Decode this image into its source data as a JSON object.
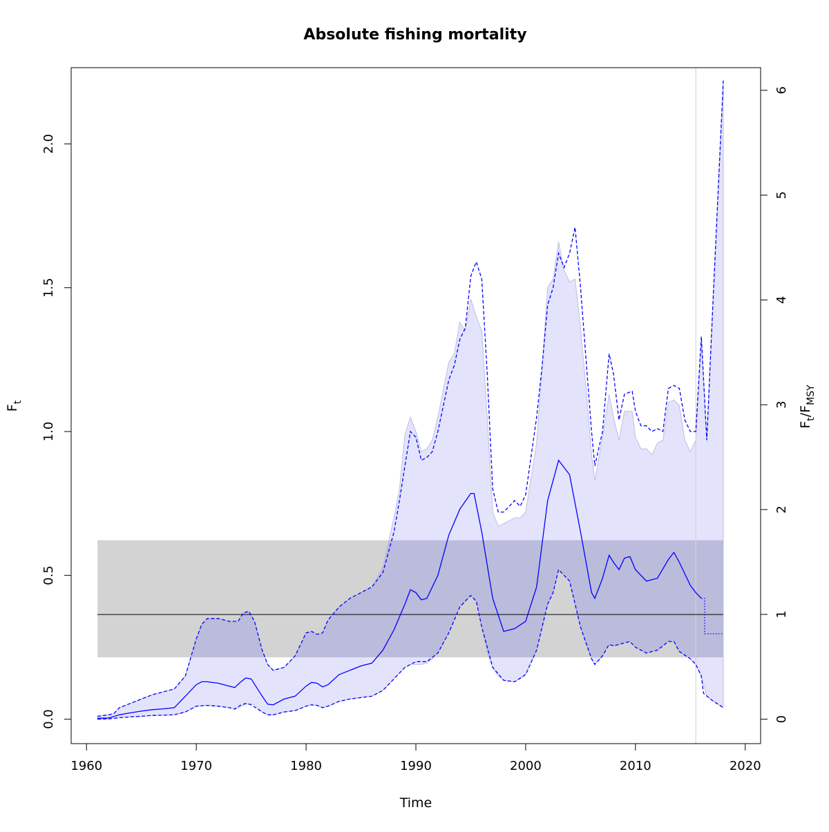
{
  "chart_data": {
    "type": "line",
    "title": "Absolute fishing mortality",
    "xlabel": "Time",
    "ylabel": "F_t",
    "ylabel_right": "F_t/F_MSY",
    "xlim": [
      1958.6,
      2021.4
    ],
    "ylim": [
      -0.085,
      2.265
    ],
    "ylim_right": [
      -0.233,
      6.216
    ],
    "x_ticks": [
      1960,
      1970,
      1980,
      1990,
      2000,
      2010,
      2020
    ],
    "y_ticks": [
      0.0,
      0.5,
      1.0,
      1.5,
      2.0
    ],
    "y_tick_labels": [
      "0.0",
      "0.5",
      "1.0",
      "1.5",
      "2.0"
    ],
    "y_right_ticks": [
      0,
      1,
      2,
      3,
      4,
      5,
      6
    ],
    "reference": {
      "fmsy": 0.364,
      "fmsy_band": [
        0.215,
        0.622
      ],
      "x_range": [
        1961,
        2018
      ]
    },
    "forecast_start": 2015.5,
    "colors": {
      "estimate": "#0000ff",
      "ci_fill": "#e3e3fc",
      "ci_outline": "#bfbfdd",
      "band": "#d3d3d3",
      "band_overlap": "#bbbbdb",
      "reference": "#000000",
      "forecast_line": "#d3d3d3"
    },
    "series": [
      {
        "role": "estimate",
        "line": "solid",
        "x": [
          1961,
          1962,
          1963,
          1964,
          1965,
          1966,
          1967,
          1968,
          1969,
          1970,
          1970.5,
          1971,
          1972,
          1973,
          1973.5,
          1974,
          1974.5,
          1975,
          1976,
          1976.5,
          1977,
          1978,
          1979,
          1980,
          1980.5,
          1981,
          1981.5,
          1982,
          1983,
          1984,
          1985,
          1986,
          1987,
          1988,
          1989,
          1989.5,
          1990,
          1990.5,
          1991,
          1992,
          1993,
          1994,
          1995,
          1995.3,
          1996,
          1997,
          1998,
          1999,
          2000,
          2001,
          2002,
          2003,
          2004,
          2005,
          2006,
          2006.3,
          2007,
          2007.6,
          2008,
          2008.5,
          2009,
          2009.5,
          2010,
          2011,
          2012,
          2013,
          2013.5,
          2014,
          2015,
          2015.5,
          2016
        ],
        "y": [
          0.003,
          0.004,
          0.015,
          0.022,
          0.028,
          0.033,
          0.036,
          0.04,
          0.08,
          0.12,
          0.13,
          0.13,
          0.125,
          0.115,
          0.11,
          0.128,
          0.143,
          0.14,
          0.08,
          0.052,
          0.05,
          0.07,
          0.08,
          0.115,
          0.128,
          0.125,
          0.112,
          0.12,
          0.155,
          0.17,
          0.185,
          0.195,
          0.24,
          0.31,
          0.4,
          0.45,
          0.44,
          0.415,
          0.42,
          0.5,
          0.64,
          0.73,
          0.785,
          0.785,
          0.65,
          0.42,
          0.305,
          0.315,
          0.34,
          0.46,
          0.76,
          0.9,
          0.85,
          0.65,
          0.44,
          0.42,
          0.49,
          0.57,
          0.545,
          0.52,
          0.56,
          0.565,
          0.52,
          0.48,
          0.49,
          0.555,
          0.58,
          0.545,
          0.465,
          0.44,
          0.42
        ]
      },
      {
        "role": "forecast",
        "line": "dotted",
        "x": [
          2016,
          2016.3,
          2016.3,
          2018
        ],
        "y": [
          0.42,
          0.42,
          0.297,
          0.297
        ]
      },
      {
        "role": "upper_ci",
        "line": "dashed",
        "x": [
          1961,
          1962,
          1962.5,
          1963,
          1964,
          1965,
          1966,
          1967,
          1968,
          1969,
          1970,
          1970.5,
          1971,
          1972,
          1973,
          1973.8,
          1974.3,
          1974.8,
          1975.3,
          1976,
          1976.5,
          1977,
          1978,
          1979,
          1980,
          1980.5,
          1981,
          1981.5,
          1982,
          1983,
          1984,
          1985,
          1986,
          1987,
          1988,
          1988.5,
          1989,
          1989.5,
          1990,
          1990.5,
          1991,
          1991.5,
          1992,
          1993,
          1993.5,
          1994,
          1994.5,
          1995,
          1995.5,
          1996,
          1996.5,
          1997,
          1997.5,
          1998,
          1999,
          1999.5,
          2000,
          2001,
          2001.5,
          2002,
          2002.5,
          2003,
          2003.5,
          2004,
          2004.5,
          2005,
          2005.5,
          2006,
          2006.3,
          2007,
          2007.6,
          2008,
          2008.5,
          2009,
          2009.7,
          2010,
          2010.5,
          2011,
          2011.5,
          2012,
          2012.5,
          2013,
          2013.5,
          2014,
          2014.5,
          2015,
          2015.5,
          2016,
          2016.5,
          2017,
          2018
        ],
        "y": [
          0.01,
          0.015,
          0.02,
          0.04,
          0.055,
          0.07,
          0.085,
          0.095,
          0.105,
          0.15,
          0.28,
          0.33,
          0.35,
          0.35,
          0.34,
          0.34,
          0.37,
          0.375,
          0.34,
          0.24,
          0.19,
          0.17,
          0.18,
          0.22,
          0.3,
          0.305,
          0.295,
          0.3,
          0.345,
          0.39,
          0.42,
          0.44,
          0.46,
          0.51,
          0.65,
          0.76,
          0.88,
          1.0,
          0.98,
          0.9,
          0.91,
          0.93,
          1.0,
          1.18,
          1.23,
          1.32,
          1.36,
          1.54,
          1.59,
          1.53,
          1.2,
          0.8,
          0.72,
          0.72,
          0.76,
          0.74,
          0.78,
          1.05,
          1.23,
          1.44,
          1.5,
          1.62,
          1.57,
          1.62,
          1.71,
          1.5,
          1.25,
          1.0,
          0.88,
          1.0,
          1.27,
          1.2,
          1.04,
          1.13,
          1.14,
          1.07,
          1.02,
          1.02,
          1.0,
          1.01,
          1.0,
          1.15,
          1.16,
          1.15,
          1.04,
          1.0,
          1.0,
          1.33,
          0.97,
          1.4,
          2.22
        ]
      },
      {
        "role": "lower_ci",
        "line": "dashed",
        "x": [
          1961,
          1962,
          1963,
          1964,
          1965,
          1966,
          1967,
          1968,
          1969,
          1970,
          1971,
          1972,
          1973,
          1973.5,
          1974,
          1974.5,
          1975,
          1976,
          1976.5,
          1977,
          1978,
          1979,
          1980,
          1980.5,
          1981,
          1981.5,
          1982,
          1983,
          1984,
          1985,
          1986,
          1987,
          1988,
          1989,
          1990,
          1991,
          1992,
          1993,
          1994,
          1994.5,
          1995,
          1995.5,
          1996,
          1997,
          1998,
          1999,
          2000,
          2001,
          2002,
          2002.5,
          2003,
          2004,
          2005,
          2006,
          2006.3,
          2007,
          2007.6,
          2008,
          2008.5,
          2009,
          2009.5,
          2010,
          2011,
          2012,
          2013,
          2013.5,
          2014,
          2015,
          2015.5,
          2016,
          2016.2,
          2017,
          2018
        ],
        "y": [
          0.0,
          0.001,
          0.005,
          0.008,
          0.01,
          0.013,
          0.014,
          0.015,
          0.025,
          0.045,
          0.048,
          0.045,
          0.04,
          0.035,
          0.048,
          0.055,
          0.05,
          0.025,
          0.015,
          0.015,
          0.025,
          0.03,
          0.045,
          0.05,
          0.048,
          0.04,
          0.045,
          0.062,
          0.07,
          0.075,
          0.08,
          0.1,
          0.14,
          0.18,
          0.2,
          0.2,
          0.23,
          0.3,
          0.39,
          0.41,
          0.43,
          0.41,
          0.32,
          0.18,
          0.135,
          0.13,
          0.155,
          0.24,
          0.4,
          0.44,
          0.52,
          0.48,
          0.32,
          0.21,
          0.19,
          0.22,
          0.26,
          0.255,
          0.26,
          0.265,
          0.27,
          0.25,
          0.23,
          0.24,
          0.27,
          0.27,
          0.235,
          0.21,
          0.19,
          0.15,
          0.09,
          0.065,
          0.04
        ]
      }
    ],
    "ci_shading": {
      "x": [
        1961,
        1962,
        1962.5,
        1963,
        1964,
        1965,
        1966,
        1967,
        1968,
        1969,
        1970,
        1970.5,
        1971,
        1972,
        1973,
        1973.8,
        1974.3,
        1974.8,
        1975.3,
        1976,
        1976.5,
        1977,
        1978,
        1979,
        1980,
        1980.5,
        1981,
        1981.5,
        1982,
        1983,
        1984,
        1985,
        1986,
        1987,
        1988,
        1988.5,
        1989,
        1989.5,
        1990,
        1990.5,
        1991,
        1991.5,
        1992,
        1993,
        1993.5,
        1994,
        1994.5,
        1995,
        1995.5,
        1996,
        1996.5,
        1997,
        1997.5,
        1998,
        1999,
        1999.5,
        2000,
        2001,
        2001.5,
        2002,
        2002.5,
        2003,
        2003.5,
        2004,
        2004.5,
        2005,
        2005.5,
        2006,
        2006.3,
        2007,
        2007.6,
        2008,
        2008.5,
        2009,
        2009.7,
        2010,
        2010.5,
        2011,
        2011.5,
        2012,
        2012.5,
        2013,
        2013.5,
        2014,
        2014.5,
        2015,
        2015.5,
        2016,
        2016.5,
        2017,
        2018
      ],
      "upper": [
        0.01,
        0.015,
        0.02,
        0.04,
        0.055,
        0.07,
        0.085,
        0.095,
        0.105,
        0.15,
        0.28,
        0.33,
        0.35,
        0.35,
        0.34,
        0.34,
        0.37,
        0.375,
        0.34,
        0.24,
        0.19,
        0.17,
        0.18,
        0.22,
        0.3,
        0.305,
        0.295,
        0.3,
        0.345,
        0.39,
        0.42,
        0.44,
        0.46,
        0.53,
        0.7,
        0.8,
        0.99,
        1.05,
        1.0,
        0.93,
        0.94,
        0.97,
        1.05,
        1.24,
        1.27,
        1.38,
        1.35,
        1.46,
        1.4,
        1.35,
        1.05,
        0.72,
        0.67,
        0.68,
        0.7,
        0.7,
        0.72,
        0.96,
        1.22,
        1.5,
        1.53,
        1.66,
        1.56,
        1.52,
        1.53,
        1.36,
        1.15,
        0.92,
        0.83,
        0.98,
        1.13,
        1.05,
        0.97,
        1.07,
        1.07,
        0.98,
        0.94,
        0.94,
        0.92,
        0.96,
        0.97,
        1.1,
        1.11,
        1.09,
        0.97,
        0.93,
        0.97,
        1.33,
        0.97,
        1.4,
        2.22
      ],
      "lower": [
        0.0,
        0.001,
        0.003,
        0.005,
        0.008,
        0.01,
        0.013,
        0.014,
        0.015,
        0.025,
        0.045,
        0.047,
        0.048,
        0.045,
        0.04,
        0.038,
        0.048,
        0.055,
        0.05,
        0.025,
        0.015,
        0.015,
        0.025,
        0.03,
        0.045,
        0.05,
        0.048,
        0.04,
        0.045,
        0.062,
        0.07,
        0.075,
        0.08,
        0.1,
        0.14,
        0.16,
        0.18,
        0.19,
        0.19,
        0.19,
        0.195,
        0.21,
        0.23,
        0.3,
        0.35,
        0.39,
        0.41,
        0.43,
        0.41,
        0.32,
        0.23,
        0.18,
        0.15,
        0.135,
        0.13,
        0.14,
        0.155,
        0.24,
        0.32,
        0.4,
        0.44,
        0.52,
        0.5,
        0.48,
        0.4,
        0.32,
        0.26,
        0.21,
        0.19,
        0.22,
        0.26,
        0.255,
        0.26,
        0.265,
        0.27,
        0.25,
        0.24,
        0.23,
        0.235,
        0.24,
        0.255,
        0.27,
        0.27,
        0.235,
        0.22,
        0.21,
        0.19,
        0.15,
        0.08,
        0.065,
        0.04
      ]
    }
  }
}
